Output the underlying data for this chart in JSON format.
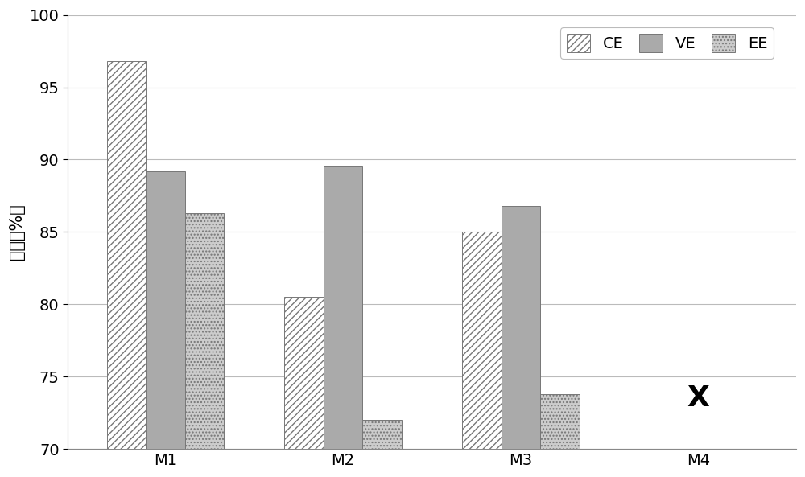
{
  "categories": [
    "M1",
    "M2",
    "M3",
    "M4"
  ],
  "series": {
    "CE": [
      96.8,
      80.5,
      85.0,
      70.0
    ],
    "VE": [
      89.2,
      89.6,
      86.8,
      70.0
    ],
    "EE": [
      86.3,
      72.0,
      73.8,
      70.0
    ]
  },
  "ylabel": "效率（%）",
  "ylim": [
    70,
    100
  ],
  "yticks": [
    70,
    75,
    80,
    85,
    90,
    95,
    100
  ],
  "legend_labels": [
    "CE",
    "VE",
    "EE"
  ],
  "bar_width": 0.22,
  "background_color": "#ffffff",
  "grid_color": "#bbbbbb",
  "x_annotation": "X",
  "tick_fontsize": 14,
  "axis_fontsize": 15,
  "legend_fontsize": 14,
  "annotation_fontsize": 26
}
